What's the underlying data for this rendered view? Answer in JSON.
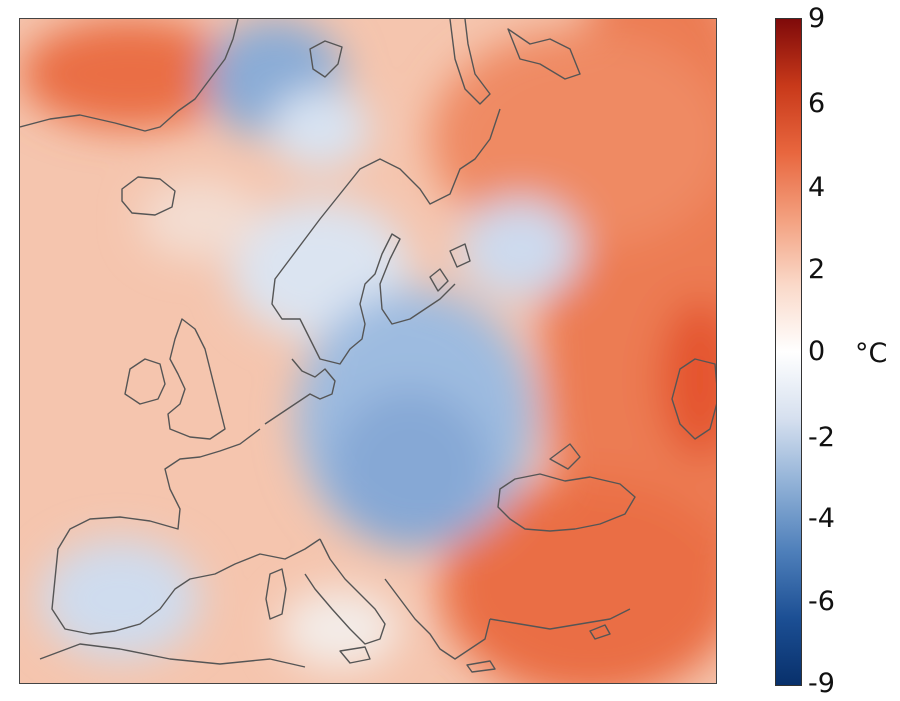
{
  "colorbar": {
    "ticks": [
      "9",
      "6",
      "4",
      "2",
      "0",
      "-2",
      "-4",
      "-6",
      "-9"
    ],
    "unit": "°C",
    "gradient_colors": [
      "#7f0a0a",
      "#c8391a",
      "#e8663e",
      "#f3a07f",
      "#fad9c9",
      "#ffffff",
      "#d6e0ef",
      "#8fb0d6",
      "#4e7fba",
      "#1c4f94",
      "#08306b"
    ]
  },
  "map": {
    "anomaly_palette": {
      "warm_strong": "#e9663d",
      "warm_medium": "#f09a7a",
      "warm_light": "#f7c7b0",
      "neutral": "#f6efeb",
      "cool_light": "#dde6f2",
      "cool_medium": "#b3c9e5",
      "cool_strong": "#7fa3d2",
      "coastline": "#555555"
    }
  }
}
